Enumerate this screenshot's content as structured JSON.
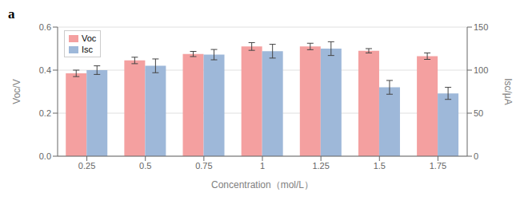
{
  "chart_data": {
    "type": "bar",
    "title": "a",
    "categories": [
      "0.25",
      "0.5",
      "0.75",
      "1",
      "1.25",
      "1.5",
      "1.75"
    ],
    "xlabel": "Concentration（mol/L）",
    "ylabel": "Voc/V",
    "y2label": "Isc/μA",
    "series": [
      {
        "name": "Voc",
        "color": "#F4A0A0",
        "values": [
          0.385,
          0.445,
          0.475,
          0.51,
          0.51,
          0.49,
          0.465
        ],
        "errors": [
          0.015,
          0.015,
          0.012,
          0.018,
          0.015,
          0.01,
          0.015
        ]
      },
      {
        "name": "Isc",
        "color": "#9EB8D9",
        "values": [
          100,
          105,
          118,
          122,
          125,
          80,
          73
        ],
        "errors": [
          5,
          8,
          6,
          8,
          8,
          8,
          7
        ],
        "axis": "y2"
      }
    ],
    "ylim": [
      0.0,
      0.6
    ],
    "yticks": [
      {
        "value": 0.0,
        "label": "0.0"
      },
      0.2,
      0.4,
      0.6
    ],
    "y2lim": [
      0,
      150
    ],
    "y2ticks": [
      0,
      50,
      100,
      150
    ],
    "grid": true,
    "legend": "upper left"
  }
}
